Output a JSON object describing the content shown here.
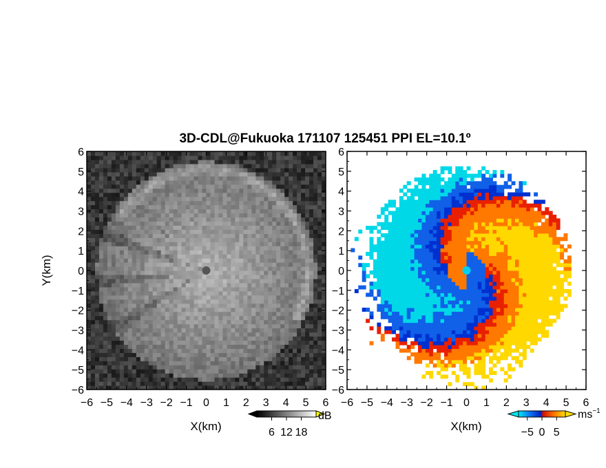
{
  "figure": {
    "title": "3D-CDL@Fukuoka 171107 125451 PPI EL=10.1º"
  },
  "chart_data": [
    {
      "type": "heatmap",
      "panel": "left",
      "quantity": "signal intensity",
      "xlabel": "X(km)",
      "ylabel": "Y(km)",
      "xlim": [
        -6,
        6
      ],
      "ylim": [
        -6,
        6
      ],
      "xticks": [
        "-6",
        "-5",
        "-4",
        "-3",
        "-2",
        "-1",
        "0",
        "1",
        "2",
        "3",
        "4",
        "5",
        "6"
      ],
      "yticks": [
        "6",
        "5",
        "4",
        "3",
        "2",
        "1",
        "0",
        "-1",
        "-2",
        "-3",
        "-4",
        "-5",
        "-6"
      ],
      "colormap": "grayscale",
      "colorbar": {
        "unit": "dB",
        "ticks": [
          "6",
          "12",
          "18"
        ],
        "range": [
          0,
          24
        ],
        "tick_values": [
          6,
          12,
          18
        ]
      },
      "echo_radius_km": 5.5,
      "center_dot_color": "#555555"
    },
    {
      "type": "heatmap",
      "panel": "right",
      "quantity": "Doppler velocity",
      "xlabel": "X(km)",
      "xlim": [
        -6,
        6
      ],
      "ylim": [
        -6,
        6
      ],
      "xticks": [
        "-6",
        "-5",
        "-4",
        "-3",
        "-2",
        "-1",
        "0",
        "1",
        "2",
        "3",
        "4",
        "5",
        "6"
      ],
      "yticks": [
        "6",
        "5",
        "4",
        "3",
        "2",
        "1",
        "0",
        "-1",
        "-2",
        "-3",
        "-4",
        "-5",
        "-6"
      ],
      "colormap": "blue-red diverging",
      "colorbar": {
        "unit": "ms",
        "unit_exponent": "−1",
        "ticks": [
          "−5",
          "0",
          "5"
        ],
        "range": [
          -8,
          8
        ],
        "tick_values": [
          -5,
          0,
          5
        ]
      },
      "colors": {
        "negative_far": "#00d8e8",
        "negative": "#1060e8",
        "near_zero_negative": "#0030d0",
        "near_zero_positive": "#e82000",
        "positive": "#ff7800",
        "positive_far": "#ffd800"
      },
      "center_dot_color": "#00d0f0"
    }
  ]
}
